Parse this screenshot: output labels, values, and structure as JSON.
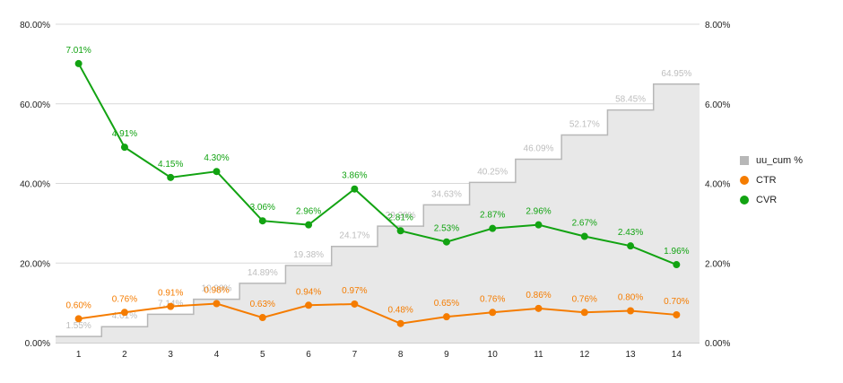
{
  "chart_data": {
    "type": "line",
    "title": "",
    "x": [
      "1",
      "2",
      "3",
      "4",
      "5",
      "6",
      "7",
      "8",
      "9",
      "10",
      "11",
      "12",
      "13",
      "14"
    ],
    "left_axis": {
      "ticks": [
        "0.00%",
        "20.00%",
        "40.00%",
        "60.00%",
        "80.00%"
      ],
      "ylim": [
        0,
        80
      ]
    },
    "right_axis": {
      "ticks": [
        "0.00%",
        "2.00%",
        "4.00%",
        "6.00%",
        "8.00%"
      ],
      "ylim": [
        0,
        8
      ]
    },
    "series": [
      {
        "name": "uu_cum %",
        "kind": "stepped-area",
        "axis": "left",
        "color": "#b7b7b7",
        "fill": "#e8e8e8",
        "values": [
          1.55,
          4.01,
          7.14,
          10.9,
          14.89,
          19.38,
          24.17,
          29.26,
          34.63,
          40.25,
          46.09,
          52.17,
          58.45,
          64.95
        ],
        "labels": [
          "1.55%",
          "4.01%",
          "7.14%",
          "10.90%",
          "14.89%",
          "19.38%",
          "24.17%",
          "29.26%",
          "34.63%",
          "40.25%",
          "46.09%",
          "52.17%",
          "58.45%",
          "64.95%"
        ]
      },
      {
        "name": "CTR",
        "kind": "line",
        "axis": "right",
        "color": "#f57c00",
        "values": [
          0.6,
          0.76,
          0.91,
          0.98,
          0.63,
          0.94,
          0.97,
          0.48,
          0.65,
          0.76,
          0.86,
          0.76,
          0.8,
          0.7
        ],
        "labels": [
          "0.60%",
          "0.76%",
          "0.91%",
          "0.98%",
          "0.63%",
          "0.94%",
          "0.97%",
          "0.48%",
          "0.65%",
          "0.76%",
          "0.86%",
          "0.76%",
          "0.80%",
          "0.70%"
        ]
      },
      {
        "name": "CVR",
        "kind": "line",
        "axis": "right",
        "color": "#12a312",
        "values": [
          7.01,
          4.91,
          4.15,
          4.3,
          3.06,
          2.96,
          3.86,
          2.81,
          2.53,
          2.87,
          2.96,
          2.67,
          2.43,
          1.96
        ],
        "labels": [
          "7.01%",
          "4.91%",
          "4.15%",
          "4.30%",
          "3.06%",
          "2.96%",
          "3.86%",
          "2.81%",
          "2.53%",
          "2.87%",
          "2.96%",
          "2.67%",
          "2.43%",
          "1.96%"
        ]
      }
    ],
    "legend_position": "right",
    "grid": true
  }
}
